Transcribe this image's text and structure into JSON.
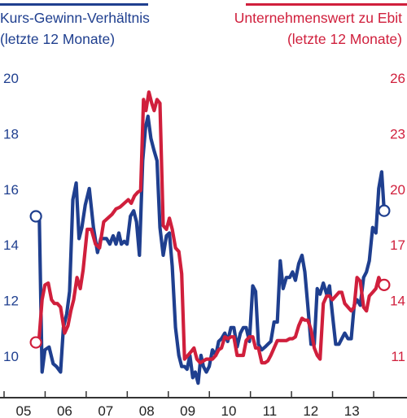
{
  "legend": {
    "left_line1": "Kurs-Gewinn-Verhältnis",
    "left_line2": "(letzte 12 Monate)",
    "right_line1": "Unternehmenswert zu Ebit",
    "right_line2": "(letzte 12 Monate)"
  },
  "colors": {
    "left": "#1f3f8f",
    "right": "#d01f3c",
    "axis": "#333333"
  },
  "chart_data": {
    "type": "line",
    "title": "",
    "x_tick_labels": [
      "05",
      "06",
      "07",
      "08",
      "09",
      "10",
      "11",
      "12",
      "13"
    ],
    "y_left": {
      "ticks": [
        "10",
        "12",
        "14",
        "16",
        "18",
        "20"
      ],
      "range": [
        9.1,
        20.2
      ]
    },
    "y_right": {
      "ticks": [
        "11",
        "14",
        "17",
        "20",
        "23",
        "26"
      ],
      "range": [
        9.6,
        26.2
      ]
    },
    "series": [
      {
        "name": "Kurs-Gewinn-Verhältnis (letzte 12 Monate)",
        "axis": "left",
        "color": "#1f3f8f",
        "marker": "open-circle-at-ends",
        "x": [
          2005.3,
          2005.38,
          2005.45,
          2005.52,
          2005.62,
          2005.72,
          2005.8,
          2005.9,
          2005.97,
          2006.05,
          2006.12,
          2006.2,
          2006.28,
          2006.35,
          2006.42,
          2006.5,
          2006.6,
          2006.7,
          2006.8,
          2006.88,
          2006.95,
          2007.02,
          2007.1,
          2007.18,
          2007.25,
          2007.32,
          2007.38,
          2007.45,
          2007.52,
          2007.6,
          2007.68,
          2007.75,
          2007.82,
          2007.9,
          2007.97,
          2008.03,
          2008.1,
          2008.17,
          2008.25,
          2008.32,
          2008.4,
          2008.48,
          2008.55,
          2008.62,
          2008.7,
          2008.78,
          2008.85,
          2008.92,
          2008.98,
          2009.05,
          2009.12,
          2009.18,
          2009.25,
          2009.32,
          2009.38,
          2009.45,
          2009.52,
          2009.6,
          2009.68,
          2009.75,
          2009.82,
          2009.9,
          2009.97,
          2010.05,
          2010.12,
          2010.2,
          2010.28,
          2010.35,
          2010.42,
          2010.5,
          2010.58,
          2010.65,
          2010.72,
          2010.8,
          2010.88,
          2010.95,
          2011.02,
          2011.1,
          2011.18,
          2011.25,
          2011.32,
          2011.4,
          2011.48,
          2011.55,
          2011.62,
          2011.7,
          2011.78,
          2011.85,
          2011.92,
          2012.0,
          2012.08,
          2012.15,
          2012.22,
          2012.3,
          2012.38,
          2012.45,
          2012.52,
          2012.6,
          2012.68,
          2012.75,
          2012.82,
          2012.9,
          2012.98,
          2013.05,
          2013.12,
          2013.2,
          2013.28,
          2013.35,
          2013.42,
          2013.5,
          2013.58,
          2013.65,
          2013.72,
          2013.78
        ],
        "values": [
          15.0,
          15.1,
          9.4,
          10.2,
          10.3,
          9.7,
          9.6,
          9.4,
          11.0,
          11.5,
          12.3,
          15.6,
          16.2,
          14.2,
          14.6,
          15.4,
          16.0,
          14.6,
          13.7,
          14.2,
          14.2,
          14.2,
          14.0,
          14.3,
          14.0,
          14.4,
          14.0,
          14.1,
          14.0,
          15.0,
          15.2,
          14.8,
          13.6,
          17.0,
          18.2,
          18.6,
          17.8,
          17.4,
          17.0,
          14.6,
          13.6,
          14.3,
          14.4,
          13.2,
          11.0,
          10.0,
          9.6,
          9.6,
          9.5,
          10.0,
          9.2,
          9.4,
          9.0,
          10.0,
          9.6,
          9.4,
          9.6,
          10.2,
          10.0,
          10.5,
          10.6,
          10.8,
          10.5,
          11.0,
          11.0,
          10.3,
          10.8,
          11.0,
          11.0,
          10.5,
          12.5,
          12.3,
          10.4,
          10.2,
          10.3,
          10.4,
          10.5,
          11.2,
          11.2,
          13.4,
          12.4,
          12.8,
          12.8,
          13.0,
          12.7,
          13.3,
          13.6,
          13.0,
          11.8,
          10.4,
          10.4,
          12.4,
          12.2,
          12.6,
          12.2,
          12.5,
          11.5,
          10.4,
          10.4,
          10.6,
          10.8,
          10.6,
          10.6,
          11.8,
          12.0,
          11.8,
          12.8,
          13.0,
          13.4,
          14.6,
          14.4,
          16.0,
          16.6,
          15.2
        ]
      },
      {
        "name": "Unternehmenswert zu Ebit (letzte 12 Monate)",
        "axis": "right",
        "color": "#d01f3c",
        "marker": "open-circle-at-ends",
        "x": [
          2005.3,
          2005.38,
          2005.45,
          2005.52,
          2005.6,
          2005.68,
          2005.75,
          2005.82,
          2005.9,
          2006.0,
          2006.08,
          2006.15,
          2006.22,
          2006.3,
          2006.38,
          2006.45,
          2006.55,
          2006.65,
          2006.75,
          2006.85,
          2006.95,
          2007.05,
          2007.15,
          2007.25,
          2007.35,
          2007.45,
          2007.55,
          2007.62,
          2007.7,
          2007.78,
          2007.85,
          2007.92,
          2007.98,
          2008.05,
          2008.12,
          2008.18,
          2008.25,
          2008.32,
          2008.4,
          2008.48,
          2008.55,
          2008.62,
          2008.7,
          2008.78,
          2008.85,
          2008.92,
          2009.0,
          2009.08,
          2009.15,
          2009.22,
          2009.3,
          2009.38,
          2009.45,
          2009.52,
          2009.6,
          2009.68,
          2009.75,
          2009.82,
          2009.9,
          2009.98,
          2010.05,
          2010.12,
          2010.2,
          2010.28,
          2010.35,
          2010.42,
          2010.5,
          2010.58,
          2010.65,
          2010.72,
          2010.8,
          2010.88,
          2010.95,
          2011.02,
          2011.1,
          2011.18,
          2011.25,
          2011.32,
          2011.4,
          2011.48,
          2011.55,
          2011.62,
          2011.7,
          2011.78,
          2011.85,
          2011.92,
          2012.0,
          2012.08,
          2012.15,
          2012.22,
          2012.3,
          2012.38,
          2012.45,
          2012.52,
          2012.6,
          2012.68,
          2012.75,
          2012.82,
          2012.9,
          2012.98,
          2013.05,
          2013.12,
          2013.2,
          2013.28,
          2013.35,
          2013.42,
          2013.5,
          2013.58,
          2013.65,
          2013.72,
          2013.78
        ],
        "values": [
          11.7,
          12.0,
          14.0,
          14.8,
          14.9,
          14.0,
          13.8,
          13.8,
          13.6,
          12.2,
          12.6,
          13.4,
          14.0,
          15.2,
          14.6,
          15.6,
          17.8,
          17.8,
          17.0,
          16.8,
          18.2,
          18.4,
          18.6,
          18.9,
          19.0,
          19.2,
          19.4,
          19.2,
          19.6,
          19.8,
          19.9,
          24.8,
          24.2,
          25.2,
          24.6,
          24.2,
          24.8,
          24.6,
          18.0,
          17.8,
          18.4,
          17.8,
          16.8,
          16.6,
          15.4,
          10.8,
          11.0,
          11.2,
          11.4,
          10.8,
          10.6,
          10.7,
          10.8,
          10.8,
          10.8,
          11.0,
          11.3,
          11.4,
          12.0,
          11.9,
          12.0,
          12.0,
          11.0,
          11.0,
          11.0,
          11.8,
          12.0,
          12.0,
          11.4,
          11.4,
          10.6,
          10.6,
          10.7,
          11.0,
          11.4,
          11.8,
          11.8,
          11.8,
          11.8,
          11.9,
          11.9,
          12.0,
          12.6,
          13.0,
          12.9,
          12.9,
          12.4,
          11.4,
          11.0,
          10.8,
          13.8,
          14.2,
          14.2,
          14.0,
          14.2,
          14.4,
          14.4,
          13.8,
          13.6,
          13.4,
          13.6,
          15.2,
          15.0,
          13.6,
          13.4,
          14.2,
          14.4,
          14.6,
          15.2,
          14.8,
          14.8
        ]
      }
    ]
  }
}
